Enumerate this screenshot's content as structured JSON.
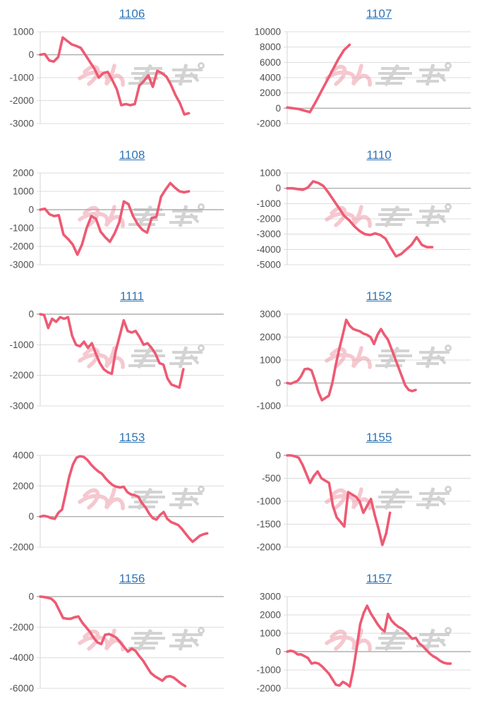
{
  "style": {
    "background": "#ffffff",
    "line_color": "#ee5a73",
    "grid_color": "#dcdcdc",
    "zero_line_color": "#b0b0b0",
    "axis_line_color": "#d4d4d4",
    "tick_label_color": "#4f4f4f",
    "title_color": "#2e74b5",
    "watermark_pink": "#ec93a3",
    "watermark_gray": "#a9a9a9"
  },
  "watermark": {
    "name": "minkabu-logo-watermark",
    "opacity": 0.5
  },
  "chart_data": [
    {
      "type": "line",
      "title": "1106",
      "ylim": [
        -3000,
        1000
      ],
      "yticks": [
        1000,
        0,
        -1000,
        -2000,
        -3000
      ],
      "x_span": 0.81,
      "values": [
        0,
        30,
        -250,
        -300,
        -100,
        750,
        600,
        450,
        380,
        300,
        0,
        -300,
        -600,
        -1000,
        -800,
        -750,
        -1100,
        -1500,
        -2200,
        -2150,
        -2200,
        -2150,
        -1350,
        -1150,
        -900,
        -1400,
        -700,
        -800,
        -950,
        -1300,
        -1750,
        -2100,
        -2600,
        -2550
      ]
    },
    {
      "type": "line",
      "title": "1107",
      "ylim": [
        -2000,
        10000
      ],
      "yticks": [
        10000,
        8000,
        6000,
        4000,
        2000,
        0,
        -2000
      ],
      "x_span": 0.34,
      "values": [
        100,
        0,
        -100,
        -300,
        -500,
        800,
        2200,
        3600,
        5000,
        6400,
        7600,
        8300
      ]
    },
    {
      "type": "line",
      "title": "1108",
      "ylim": [
        -3000,
        2000
      ],
      "yticks": [
        2000,
        1000,
        0,
        -1000,
        -2000,
        -3000
      ],
      "x_span": 0.81,
      "values": [
        0,
        50,
        -250,
        -350,
        -300,
        -1350,
        -1600,
        -1900,
        -2450,
        -1900,
        -1000,
        -350,
        -500,
        -1200,
        -1500,
        -1750,
        -1300,
        -700,
        450,
        300,
        -350,
        -800,
        -1100,
        -1250,
        -450,
        -400,
        700,
        1100,
        1450,
        1200,
        1000,
        950,
        1000
      ]
    },
    {
      "type": "line",
      "title": "1110",
      "ylim": [
        -5000,
        1000
      ],
      "yticks": [
        1000,
        0,
        -1000,
        -2000,
        -3000,
        -4000,
        -5000
      ],
      "x_span": 0.79,
      "values": [
        0,
        0,
        -50,
        -100,
        50,
        450,
        350,
        150,
        -300,
        -800,
        -1300,
        -1800,
        -2100,
        -2500,
        -2800,
        -3000,
        -3050,
        -2950,
        -3050,
        -3300,
        -3900,
        -4450,
        -4300,
        -4000,
        -3700,
        -3200,
        -3700,
        -3850,
        -3850
      ]
    },
    {
      "type": "line",
      "title": "1111",
      "ylim": [
        -3000,
        0
      ],
      "yticks": [
        0,
        -1000,
        -2000,
        -3000
      ],
      "x_span": 0.78,
      "values": [
        0,
        -30,
        -450,
        -150,
        -250,
        -100,
        -150,
        -100,
        -700,
        -1000,
        -1050,
        -900,
        -1100,
        -950,
        -1300,
        -1600,
        -1800,
        -1900,
        -1950,
        -1200,
        -700,
        -200,
        -550,
        -600,
        -550,
        -750,
        -1000,
        -950,
        -1100,
        -1300,
        -1600,
        -1650,
        -2100,
        -2300,
        -2350,
        -2400,
        -1800
      ]
    },
    {
      "type": "line",
      "title": "1152",
      "ylim": [
        -1000,
        3000
      ],
      "yticks": [
        3000,
        2000,
        1000,
        0,
        -1000
      ],
      "x_span": 0.7,
      "values": [
        0,
        -30,
        30,
        100,
        300,
        600,
        620,
        550,
        100,
        -400,
        -750,
        -650,
        -550,
        0,
        800,
        1500,
        2100,
        2750,
        2500,
        2350,
        2300,
        2250,
        2150,
        2100,
        2000,
        1700,
        2100,
        2350,
        2100,
        1900,
        1500,
        1100,
        700,
        300,
        -100,
        -300,
        -350,
        -300
      ]
    },
    {
      "type": "line",
      "title": "1153",
      "ylim": [
        -2000,
        4000
      ],
      "yticks": [
        4000,
        2000,
        0,
        -2000
      ],
      "x_span": 0.91,
      "values": [
        0,
        50,
        0,
        -100,
        -150,
        250,
        450,
        1500,
        2600,
        3400,
        3850,
        3950,
        3900,
        3700,
        3400,
        3150,
        2950,
        2800,
        2500,
        2250,
        2050,
        1950,
        1900,
        1950,
        1600,
        1450,
        1400,
        1300,
        900,
        600,
        200,
        -100,
        -200,
        100,
        300,
        -150,
        -350,
        -450,
        -550,
        -800,
        -1100,
        -1400,
        -1650,
        -1450,
        -1250,
        -1150,
        -1100
      ]
    },
    {
      "type": "line",
      "title": "1155",
      "ylim": [
        -2000,
        0
      ],
      "yticks": [
        0,
        -500,
        -1000,
        -1500,
        -2000
      ],
      "x_span": 0.56,
      "values": [
        0,
        0,
        -20,
        -50,
        -200,
        -400,
        -600,
        -450,
        -350,
        -500,
        -550,
        -600,
        -1100,
        -1350,
        -1450,
        -1550,
        -800,
        -850,
        -900,
        -1000,
        -1250,
        -1100,
        -950,
        -1300,
        -1600,
        -1950,
        -1700,
        -1250
      ]
    },
    {
      "type": "line",
      "title": "1156",
      "ylim": [
        -6000,
        0
      ],
      "yticks": [
        0,
        -2000,
        -4000,
        -6000
      ],
      "x_span": 0.79,
      "values": [
        0,
        -30,
        -80,
        -150,
        -400,
        -900,
        -1400,
        -1450,
        -1450,
        -1350,
        -1300,
        -1700,
        -2000,
        -2300,
        -2700,
        -3000,
        -3100,
        -2500,
        -2450,
        -2550,
        -2700,
        -3000,
        -3300,
        -3600,
        -3400,
        -3550,
        -3900,
        -4200,
        -4600,
        -5000,
        -5200,
        -5350,
        -5500,
        -5250,
        -5200,
        -5300,
        -5500,
        -5700,
        -5850
      ]
    },
    {
      "type": "line",
      "title": "1157",
      "ylim": [
        -2000,
        3000
      ],
      "yticks": [
        3000,
        2000,
        1000,
        0,
        -1000,
        -2000
      ],
      "x_span": 0.89,
      "values": [
        0,
        50,
        0,
        -150,
        -150,
        -250,
        -350,
        -650,
        -600,
        -650,
        -800,
        -1000,
        -1200,
        -1500,
        -1800,
        -1850,
        -1650,
        -1750,
        -1900,
        -1000,
        200,
        1500,
        2100,
        2500,
        2100,
        1800,
        1500,
        1250,
        1100,
        2050,
        1700,
        1500,
        1350,
        1250,
        1100,
        900,
        700,
        750,
        450,
        300,
        100,
        -100,
        -250,
        -350,
        -500,
        -600,
        -650,
        -650
      ]
    }
  ]
}
